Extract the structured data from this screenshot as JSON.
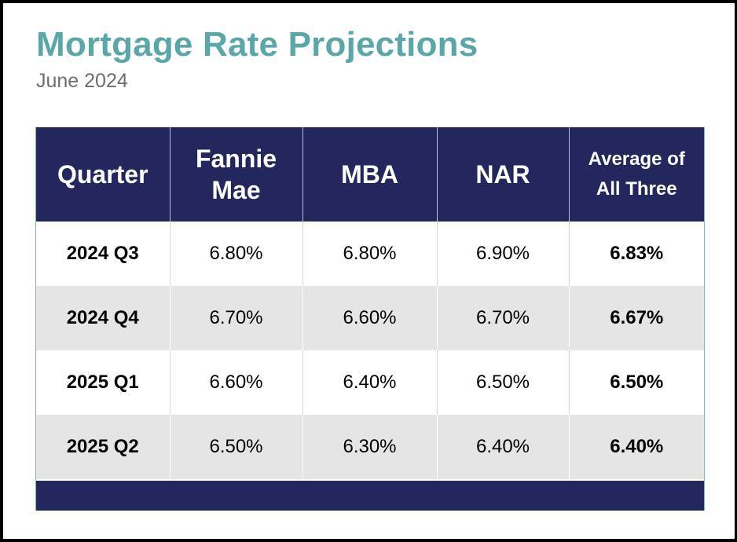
{
  "header": {
    "title": "Mortgage Rate Projections",
    "subtitle": "June 2024"
  },
  "colors": {
    "title": "#5aa7a8",
    "header_bg": "#23275e",
    "stripe": "#e5e5e5"
  },
  "chart_data": {
    "type": "table",
    "title": "Mortgage Rate Projections",
    "subtitle": "June 2024",
    "columns": [
      "Quarter",
      "Fannie Mae",
      "MBA",
      "NAR",
      "Average of All Three"
    ],
    "rows": [
      {
        "quarter": "2024 Q3",
        "fannie_mae": "6.80%",
        "mba": "6.80%",
        "nar": "6.90%",
        "average": "6.83%"
      },
      {
        "quarter": "2024 Q4",
        "fannie_mae": "6.70%",
        "mba": "6.60%",
        "nar": "6.70%",
        "average": "6.67%"
      },
      {
        "quarter": "2025 Q1",
        "fannie_mae": "6.60%",
        "mba": "6.40%",
        "nar": "6.50%",
        "average": "6.50%"
      },
      {
        "quarter": "2025 Q2",
        "fannie_mae": "6.50%",
        "mba": "6.30%",
        "nar": "6.40%",
        "average": "6.40%"
      }
    ]
  }
}
